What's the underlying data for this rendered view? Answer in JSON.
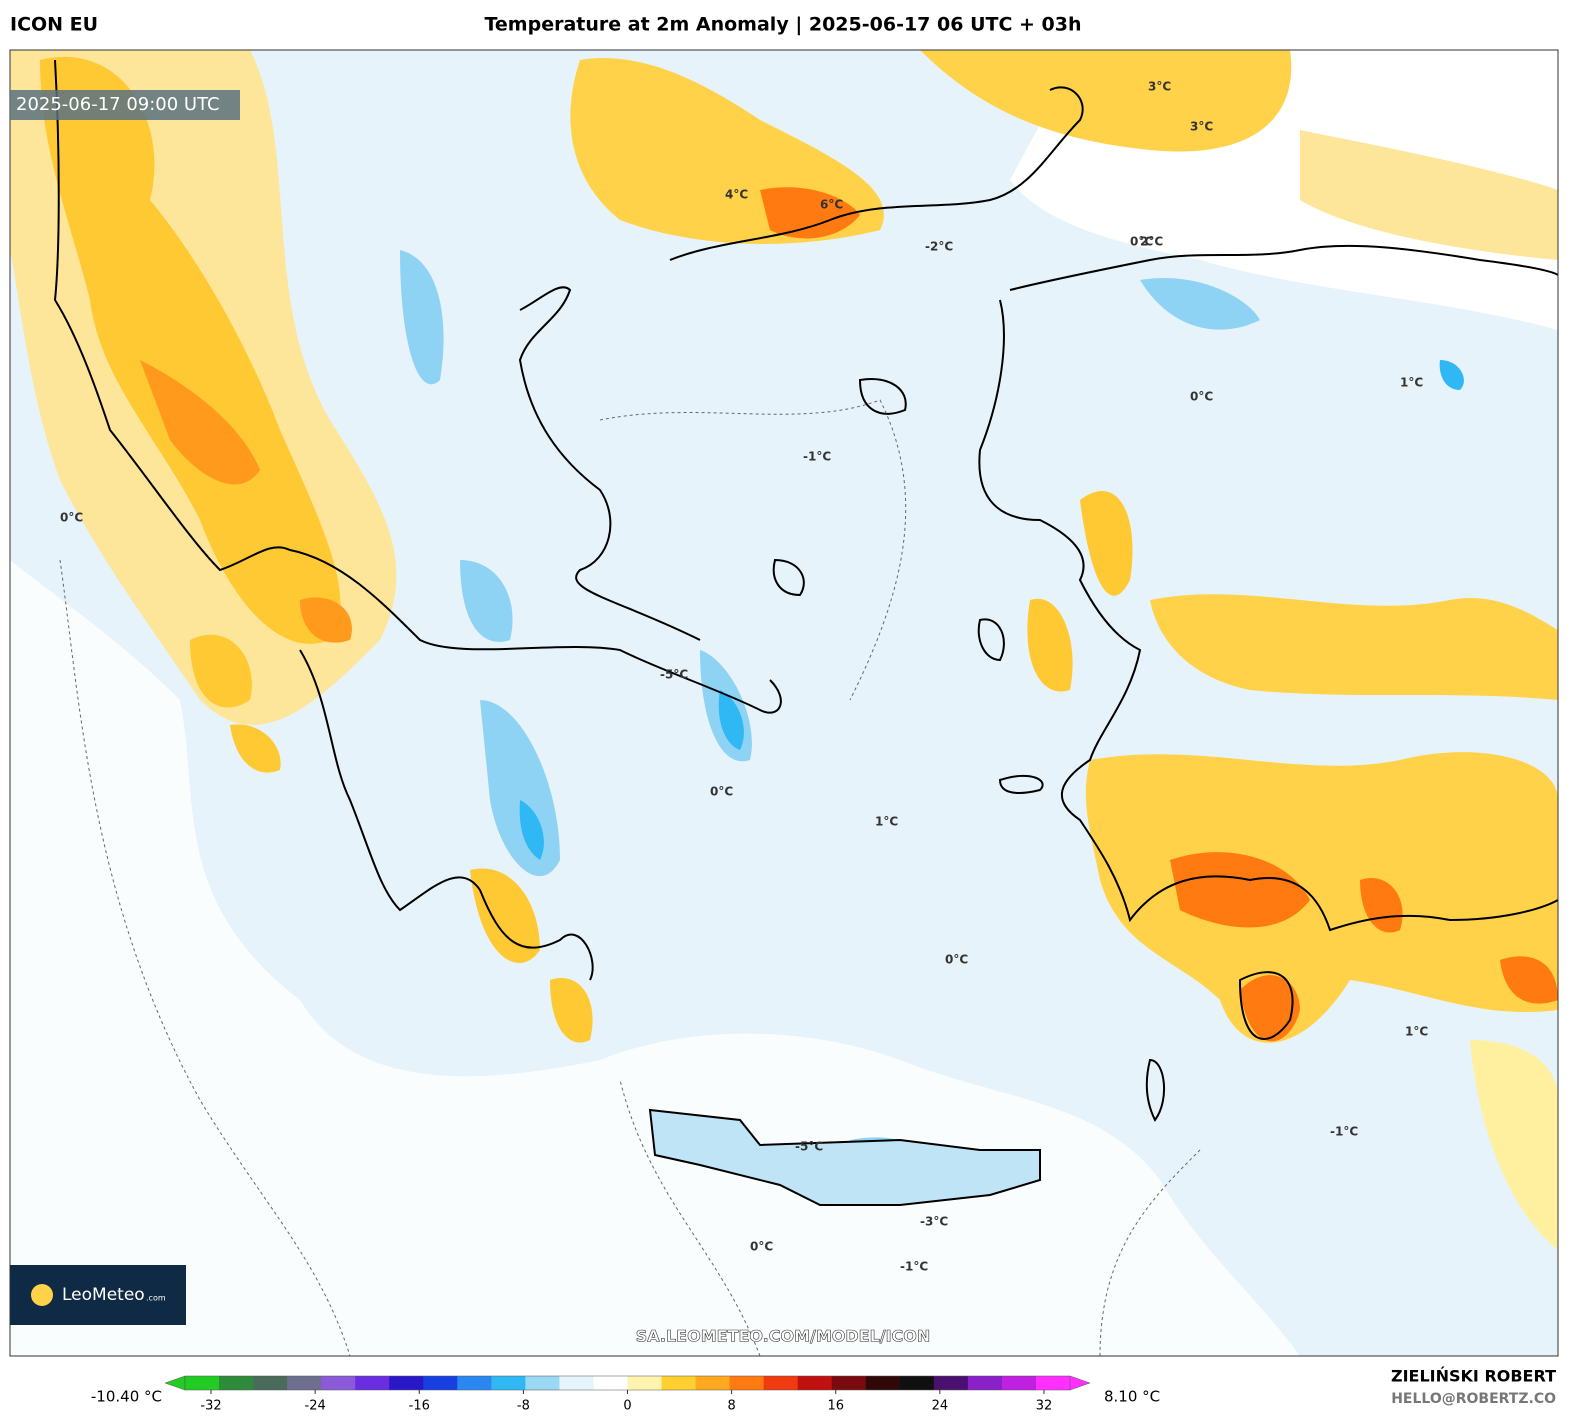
{
  "header": {
    "model": "ICON EU",
    "title": "Temperature at 2m Anomaly | 2025-06-17 06 UTC + 03h"
  },
  "map": {
    "valid_time": "2025-06-17 09:00 UTC",
    "url": "SA.LEOMETEO.COM/MODEL/ICON",
    "logo": "LeoMeteo",
    "logo_suffix": ".com",
    "contour_labels": [
      "0°C",
      "1°C",
      "-1°C",
      "2°C",
      "-2°C",
      "3°C",
      "-3°C",
      "4°C",
      "-5°C",
      "6°C"
    ]
  },
  "colorbar": {
    "min_label": "-10.40 °C",
    "max_label": "8.10 °C",
    "lim": [
      -34,
      34
    ],
    "ticks": [
      -32,
      -24,
      -16,
      -8,
      0,
      8,
      16,
      24,
      32
    ],
    "colors": [
      "#22cc22",
      "#2e8b3a",
      "#4a6b5a",
      "#6e6e8e",
      "#8a5ad8",
      "#6a2ee0",
      "#2a18c8",
      "#1840e0",
      "#2a86f0",
      "#30b8f4",
      "#9ad8f4",
      "#e6f4fb",
      "#ffffff",
      "#fff3b0",
      "#ffd030",
      "#ffa820",
      "#ff7a10",
      "#f03a10",
      "#c01010",
      "#7a0a10",
      "#300808",
      "#101010",
      "#4a1070",
      "#8a20c8",
      "#c020e0",
      "#ff30ff"
    ]
  },
  "credit": {
    "author": "ZIELIŃSKI ROBERT",
    "email": "HELLO@ROBERTZ.CO"
  }
}
